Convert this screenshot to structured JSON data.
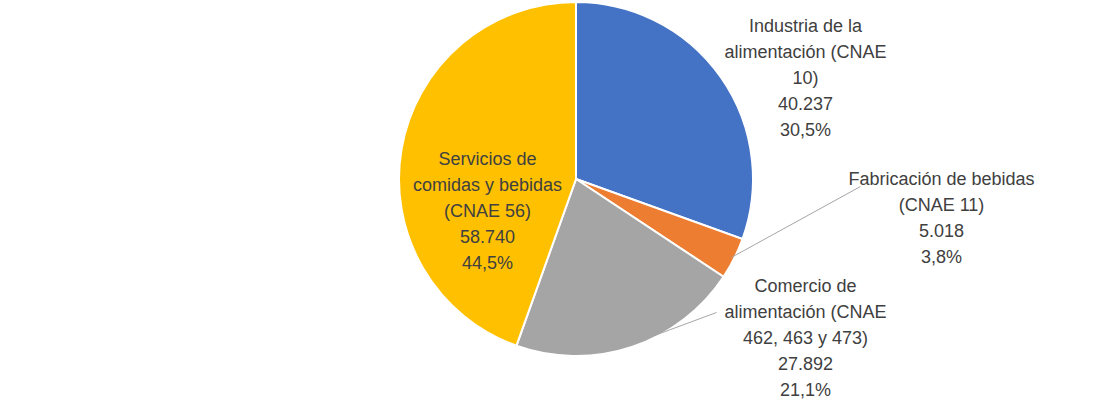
{
  "chart_data": {
    "type": "pie",
    "categories": [
      "Industria de la\nalimentación (CNAE\n10)",
      "Fabricación de bebidas\n(CNAE 11)",
      "Comercio de\nalimentación (CNAE\n462, 463 y 473)",
      "Servicios de\ncomidas y bebidas\n(CNAE 56)"
    ],
    "values": [
      40237,
      5018,
      27892,
      58740
    ],
    "value_labels": [
      "40.237",
      "5.018",
      "27.892",
      "58.740"
    ],
    "percentages": [
      30.5,
      3.8,
      21.1,
      44.5
    ],
    "percentage_labels": [
      "30,5%",
      "3,8%",
      "21,1%",
      "44,5%"
    ],
    "colors": [
      "#4472c4",
      "#ed7d31",
      "#a5a5a5",
      "#ffc000"
    ],
    "data_labels": true
  }
}
